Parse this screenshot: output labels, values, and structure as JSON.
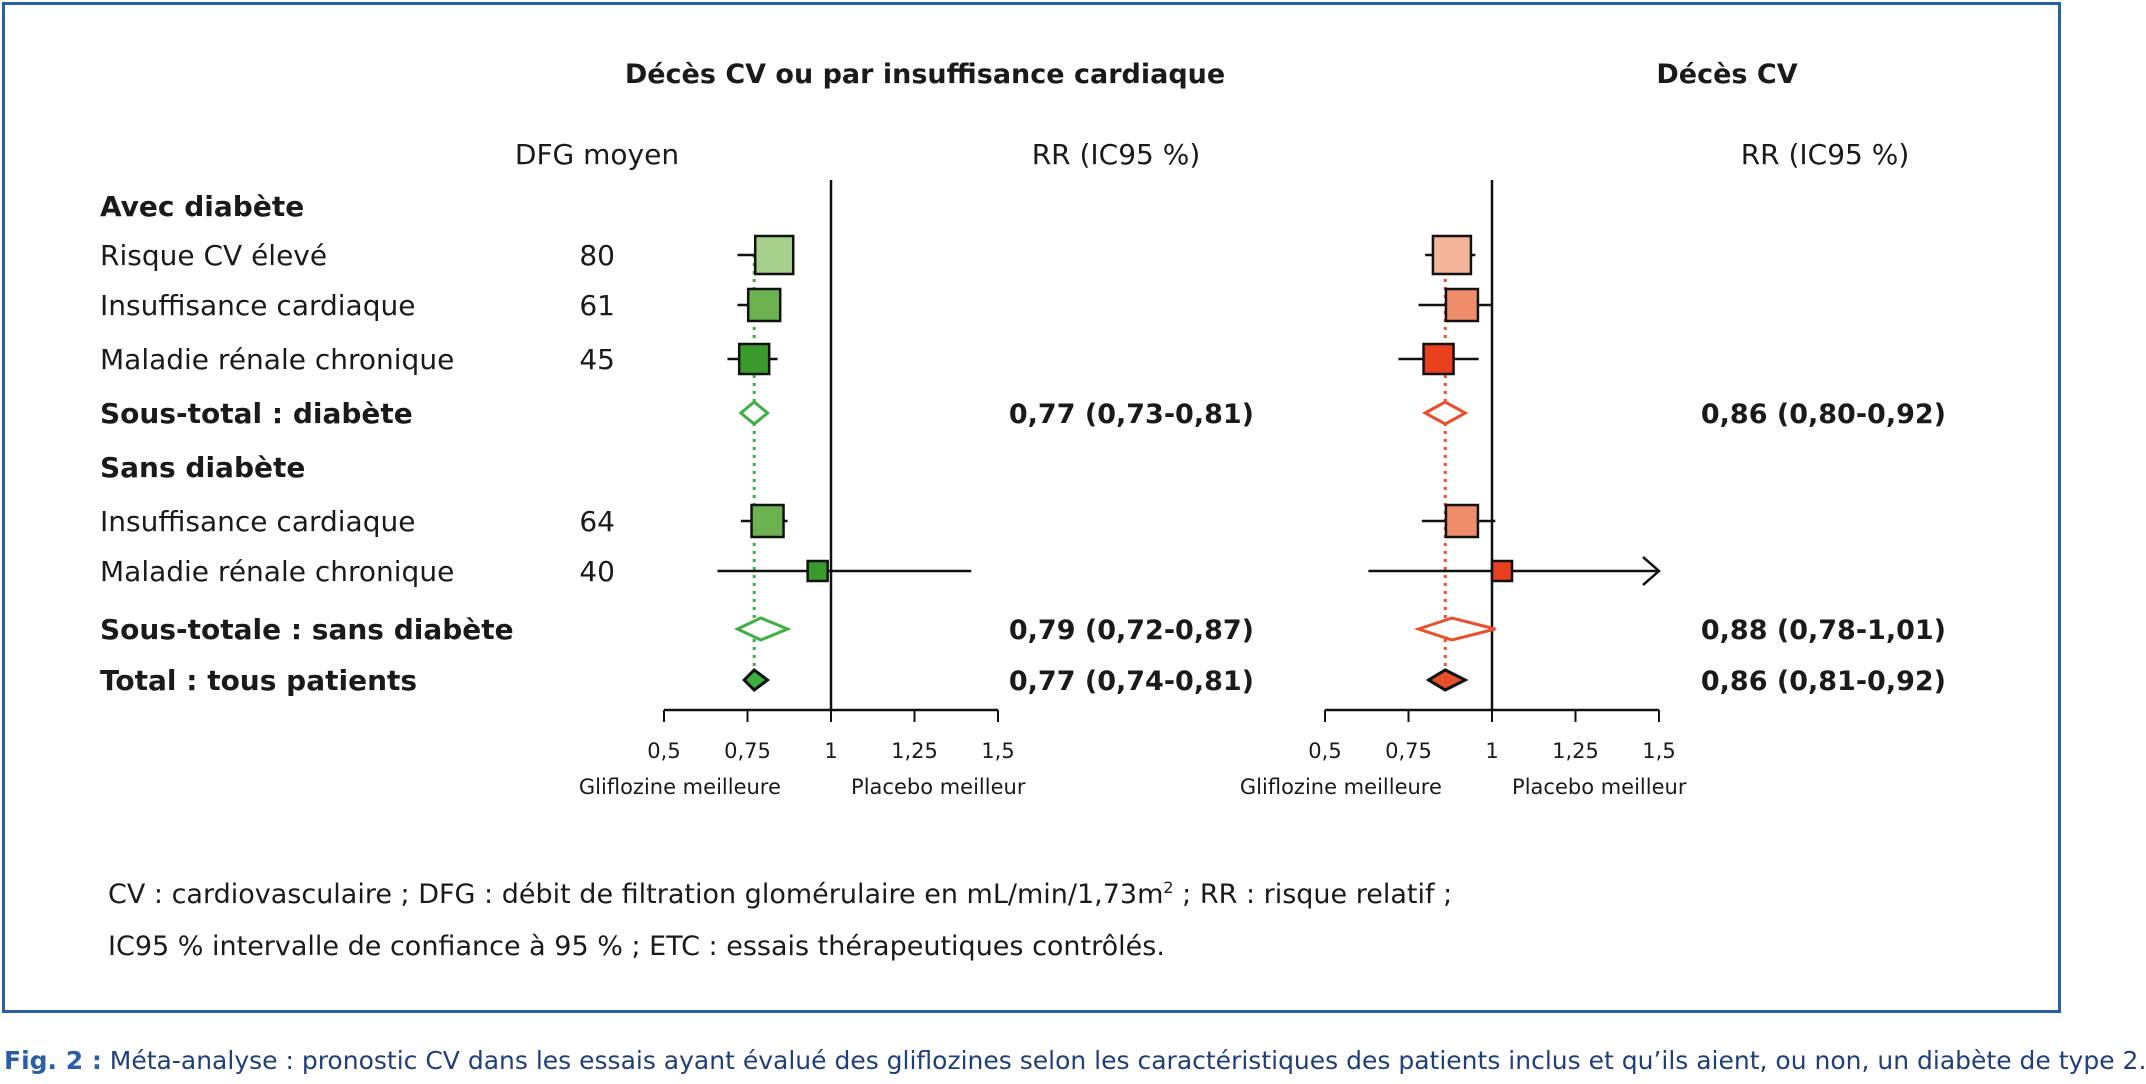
{
  "panel_titles": [
    "Décès CV ou par insuffisance cardiaque",
    "Décès CV"
  ],
  "col_headers": {
    "dfg": "DFG moyen",
    "rr_left": "RR (IC95 %)",
    "rr_right": "RR (IC95 %)"
  },
  "rows": [
    {
      "label": "Avec diabète",
      "bold": true,
      "dfg": ""
    },
    {
      "label": "Risque CV élevé",
      "bold": false,
      "dfg": "80"
    },
    {
      "label": "Insuffisance cardiaque",
      "bold": false,
      "dfg": "61"
    },
    {
      "label": "Maladie rénale chronique",
      "bold": false,
      "dfg": "45"
    },
    {
      "label": "Sous-total : diabète",
      "bold": true,
      "dfg": ""
    },
    {
      "label": "Sans diabète",
      "bold": true,
      "dfg": ""
    },
    {
      "label": "Insuffisance cardiaque",
      "bold": false,
      "dfg": "64"
    },
    {
      "label": "Maladie rénale chronique",
      "bold": false,
      "dfg": "40"
    },
    {
      "label": "Sous-totale : sans diabète",
      "bold": true,
      "dfg": ""
    },
    {
      "label": "Total : tous patients",
      "bold": true,
      "dfg": ""
    }
  ],
  "summary_left": [
    "",
    "",
    "",
    "",
    "0,77 (0,73-0,81)",
    "",
    "",
    "",
    "0,79 (0,72-0,87)",
    "0,77 (0,74-0,81)"
  ],
  "summary_right": [
    "",
    "",
    "",
    "",
    "0,86 (0,80-0,92)",
    "",
    "",
    "",
    "0,88 (0,78-1,01)",
    "0,86 (0,81-0,92)"
  ],
  "axis": {
    "ticks": [
      0.5,
      0.75,
      1,
      1.25,
      1.5
    ],
    "tick_labels": [
      "0,5",
      "0,75",
      "1",
      "1,25",
      "1,5"
    ],
    "favors_left": "Gliflozine meilleure",
    "favors_right": "Placebo meilleur"
  },
  "chart_data": [
    {
      "type": "scatter",
      "subtype": "forest",
      "title": "Décès CV ou par insuffisance cardiaque",
      "xlim": [
        0.5,
        1.5
      ],
      "reference_line": 1,
      "pooled_dotted_line": 0.77,
      "colors": {
        "light": "#a8d08d",
        "medium": "#6cb24f",
        "dark": "#3a9a2b",
        "diamond": "#3cb043"
      },
      "points": [
        {
          "row": 1,
          "kind": "square",
          "est": 0.83,
          "lo": 0.72,
          "hi": 0.85,
          "shade": "light"
        },
        {
          "row": 2,
          "kind": "square",
          "est": 0.8,
          "lo": 0.72,
          "hi": 0.85,
          "shade": "medium"
        },
        {
          "row": 3,
          "kind": "square",
          "est": 0.77,
          "lo": 0.69,
          "hi": 0.84,
          "shade": "dark"
        },
        {
          "row": 4,
          "kind": "diamond",
          "est": 0.77,
          "lo": 0.73,
          "hi": 0.81,
          "filled": false
        },
        {
          "row": 6,
          "kind": "square",
          "est": 0.81,
          "lo": 0.73,
          "hi": 0.87,
          "shade": "medium"
        },
        {
          "row": 7,
          "kind": "square",
          "est": 0.96,
          "lo": 0.66,
          "hi": 1.42,
          "shade": "dark"
        },
        {
          "row": 8,
          "kind": "diamond",
          "est": 0.79,
          "lo": 0.72,
          "hi": 0.87,
          "filled": false
        },
        {
          "row": 9,
          "kind": "diamond",
          "est": 0.77,
          "lo": 0.74,
          "hi": 0.81,
          "filled": true
        }
      ]
    },
    {
      "type": "scatter",
      "subtype": "forest",
      "title": "Décès CV",
      "xlim": [
        0.5,
        1.5
      ],
      "reference_line": 1,
      "pooled_dotted_line": 0.86,
      "colors": {
        "light": "#f4b49a",
        "medium": "#ef8c6a",
        "dark": "#e8401c",
        "diamond": "#e8502a"
      },
      "points": [
        {
          "row": 1,
          "kind": "square",
          "est": 0.88,
          "lo": 0.8,
          "hi": 0.95,
          "shade": "light"
        },
        {
          "row": 2,
          "kind": "square",
          "est": 0.91,
          "lo": 0.78,
          "hi": 1.0,
          "shade": "medium"
        },
        {
          "row": 3,
          "kind": "square",
          "est": 0.84,
          "lo": 0.72,
          "hi": 0.96,
          "shade": "dark"
        },
        {
          "row": 4,
          "kind": "diamond",
          "est": 0.86,
          "lo": 0.8,
          "hi": 0.92,
          "filled": false
        },
        {
          "row": 6,
          "kind": "square",
          "est": 0.91,
          "lo": 0.79,
          "hi": 1.01,
          "shade": "medium"
        },
        {
          "row": 7,
          "kind": "square",
          "est": 1.03,
          "lo": 0.63,
          "hi": 1.5,
          "shade": "dark",
          "arrow_right": true
        },
        {
          "row": 8,
          "kind": "diamond",
          "est": 0.88,
          "lo": 0.78,
          "hi": 1.01,
          "filled": false
        },
        {
          "row": 9,
          "kind": "diamond",
          "est": 0.86,
          "lo": 0.81,
          "hi": 0.92,
          "filled": true
        }
      ]
    }
  ],
  "footnote": {
    "line1_a": "CV : cardiovasculaire ; DFG : débit de filtration glomérulaire en mL/min/1,73m",
    "line1_sup": "2",
    "line1_b": " ; RR : risque relatif ;",
    "line2": "IC95 % intervalle de confiance à 95 % ; ETC : essais thérapeutiques contrôlés."
  },
  "caption": {
    "label": "Fig. 2 :",
    "text": " Méta-analyse : pronostic CV dans les essais ayant évalué des gliflozines selon les caractéristiques des patients inclus et qu’ils aient, ou non, un diabète de type 2."
  }
}
